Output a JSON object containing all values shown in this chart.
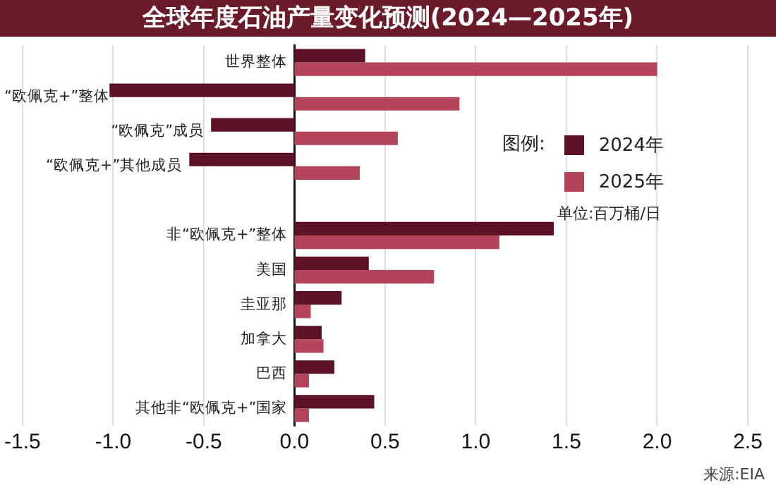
{
  "chart_data": {
    "type": "bar",
    "orientation": "horizontal",
    "title": "全球年度石油产量变化预测(2024—2025年)",
    "categories": [
      "世界整体",
      "“欧佩克+”整体",
      "“欧佩克”成员",
      "“欧佩克+”其他成员",
      null,
      "非“欧佩克+”整体",
      "美国",
      "圭亚那",
      "加拿大",
      "巴西",
      "其他非“欧佩克+”国家"
    ],
    "series": [
      {
        "name": "2024年",
        "color": "#5c1224",
        "values": [
          0.39,
          -1.02,
          -0.46,
          -0.58,
          null,
          1.43,
          0.41,
          0.26,
          0.15,
          0.22,
          0.44
        ]
      },
      {
        "name": "2025年",
        "color": "#b4445a",
        "values": [
          2.0,
          0.91,
          0.57,
          0.36,
          null,
          1.13,
          0.77,
          0.09,
          0.16,
          0.08,
          0.08
        ]
      }
    ],
    "xlim": [
      -1.5,
      2.5
    ],
    "xticks": [
      -1.5,
      {
        "value": -1,
        "label": "-1.0"
      },
      -0.5,
      {
        "value": 0,
        "label": "0.0"
      },
      0.5,
      {
        "value": 1,
        "label": "1.0"
      },
      1.5,
      {
        "value": 2,
        "label": "2.0"
      },
      2.5
    ],
    "grid": "x",
    "legend": "right",
    "legend_title": "图例:",
    "annotations": [
      "单位:百万桶/日",
      "来源:EIA"
    ]
  }
}
